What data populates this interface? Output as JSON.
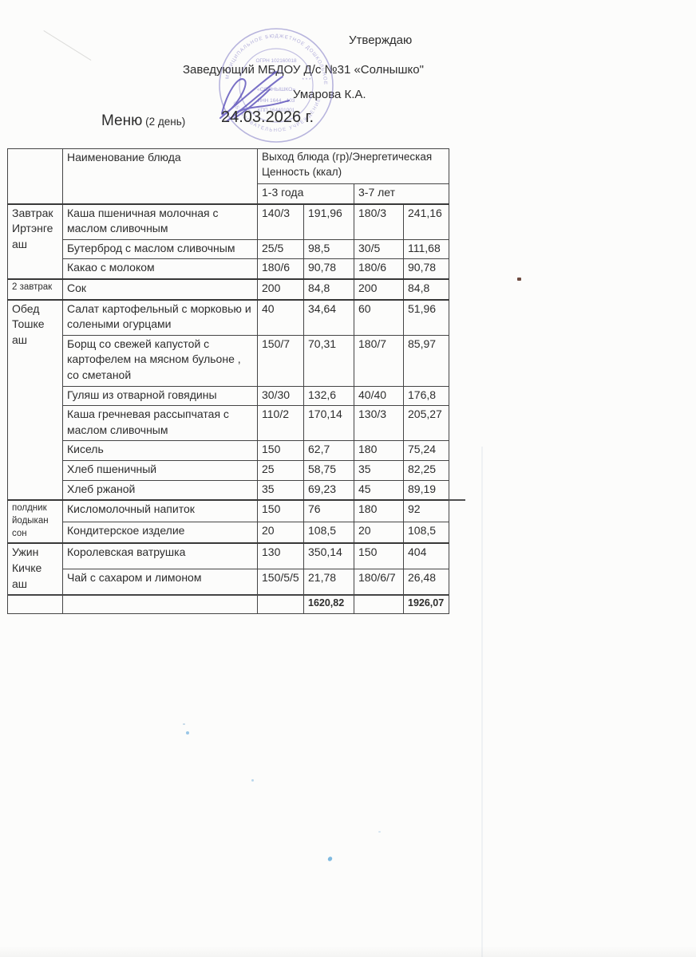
{
  "header": {
    "approve_label": "Утверждаю",
    "approver_line": "Заведующий МБДОУ Д/с №31 «Солнышко\"",
    "approver_name": "Умарова К.А.",
    "menu_label": "Меню",
    "menu_day": "(2 день)",
    "menu_date": "24.03.2026 г."
  },
  "stamp": {
    "color": "#7b74c2",
    "ring_top": "МУНИЦИПАЛЬНОЕ БЮДЖЕТНОЕ ДОШКОЛЬНОЕ",
    "ring_bottom": "ОБРАЗОВАТЕЛЬНОЕ УЧРЕЖДЕНИЕ",
    "lines": [
      "ОГРН 102160018",
      "№ 31",
      "* * *",
      "«СОЛНЫШКО»",
      "ИНН 1644…103",
      "КПП 164401001"
    ]
  },
  "table": {
    "header": {
      "name_col": "Наименование блюда",
      "output_col": "Выход блюда (гр)/Энергетическая Ценность (ккал)",
      "age_groups": [
        "1-3 года",
        "3-7 лет"
      ]
    },
    "sections": [
      {
        "category": "Завтрак Иртэнге аш",
        "small": false,
        "rows": [
          {
            "dish": "Каша пшеничная молочная с маслом сливочным",
            "values": [
              "140/3",
              "191,96",
              "180/3",
              "241,16"
            ]
          },
          {
            "dish": "Бутерброд с маслом сливочным",
            "values": [
              "25/5",
              "98,5",
              "30/5",
              "111,68"
            ]
          },
          {
            "dish": "Какао с молоком",
            "values": [
              "180/6",
              "90,78",
              "180/6",
              "90,78"
            ]
          }
        ]
      },
      {
        "category": "2 завтрак",
        "small": true,
        "rows": [
          {
            "dish": "Сок",
            "values": [
              "200",
              "84,8",
              "200",
              "84,8"
            ]
          }
        ]
      },
      {
        "category": "Обед Тошке аш",
        "small": false,
        "rows": [
          {
            "dish": "Салат картофельный с морковью и солеными огурцами",
            "values": [
              "40",
              "34,64",
              "60",
              "51,96"
            ]
          },
          {
            "dish": "Борщ  со свежей капустой с картофелем на мясном бульоне , со сметаной",
            "values": [
              "150/7",
              "70,31",
              "180/7",
              "85,97"
            ]
          },
          {
            "dish": "Гуляш из отварной говядины",
            "values": [
              "30/30",
              "132,6",
              "40/40",
              "176,8"
            ]
          },
          {
            "dish": "Каша гречневая рассыпчатая с маслом сливочным",
            "values": [
              "110/2",
              "170,14",
              "130/3",
              "205,27"
            ]
          },
          {
            "dish": "Кисель",
            "values": [
              "150",
              "62,7",
              "180",
              "75,24"
            ]
          },
          {
            "dish": "Хлеб пшеничный",
            "values": [
              "25",
              "58,75",
              "35",
              "82,25"
            ]
          },
          {
            "dish": "Хлеб ржаной",
            "values": [
              "35",
              "69,23",
              "45",
              "89,19"
            ]
          }
        ]
      },
      {
        "category": "полдник йодыкан сон",
        "small": true,
        "rows": [
          {
            "dish": "Кисломолочный напиток",
            "values": [
              "150",
              "76",
              "180",
              "92"
            ]
          },
          {
            "dish": "Кондитерское изделие",
            "values": [
              "20",
              "108,5",
              "20",
              "108,5"
            ]
          }
        ]
      },
      {
        "category": "Ужин Кичке аш",
        "small": false,
        "rows": [
          {
            "dish": "Королевская ватрушка",
            "values": [
              "130",
              "350,14",
              "150",
              "404"
            ]
          },
          {
            "dish": "Чай с сахаром  и лимоном",
            "values": [
              "150/5/5",
              "21,78",
              "180/6/7",
              "26,48"
            ]
          }
        ]
      }
    ],
    "totals": {
      "kcal_1_3": "1620,82",
      "kcal_3_7": "1926,07"
    }
  }
}
